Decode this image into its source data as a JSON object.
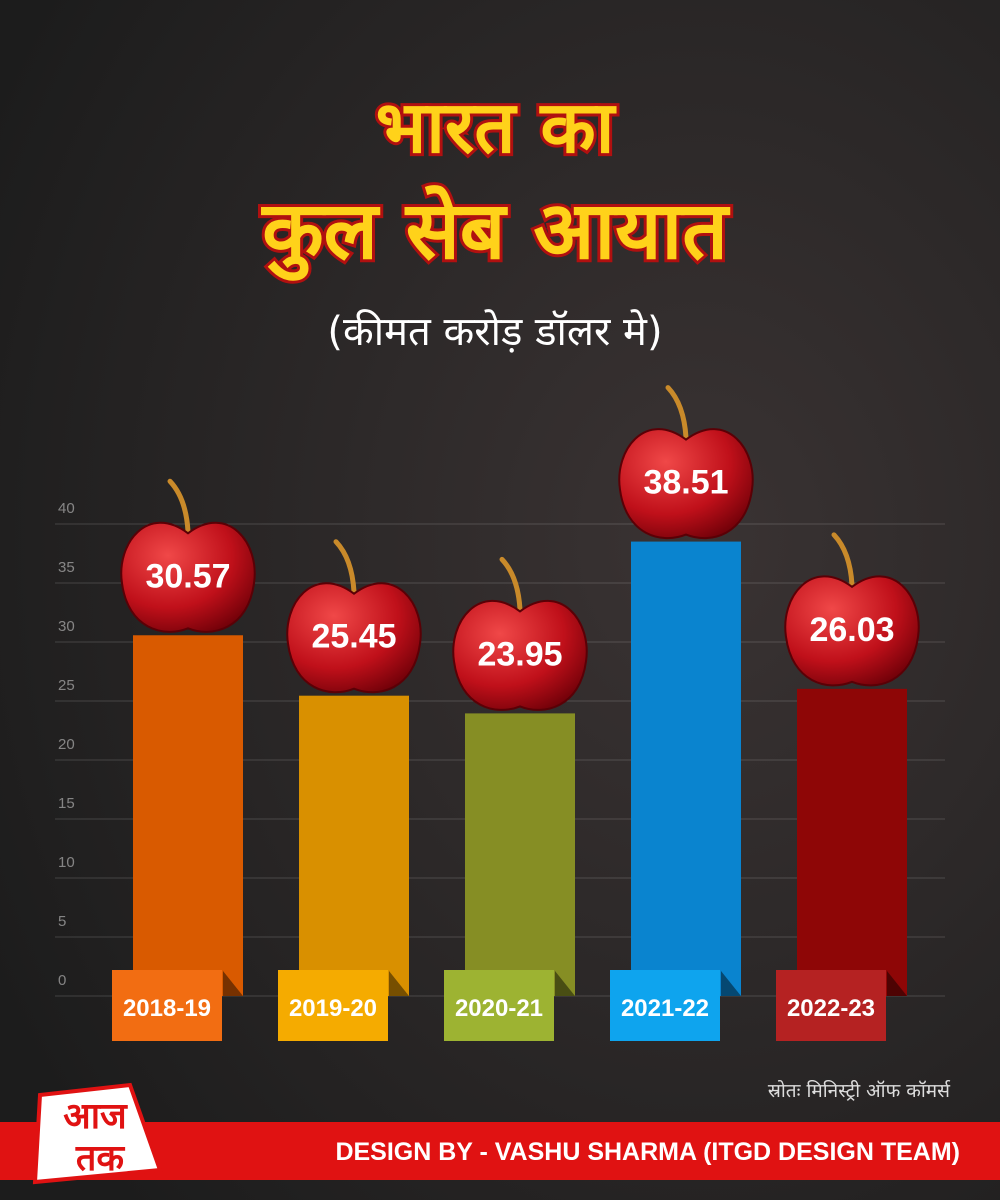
{
  "chart_data": {
    "type": "bar",
    "title": [
      "भारत का",
      "कुल सेब आयात"
    ],
    "subtitle": "(कीमत करोड़ डॉलर मे)",
    "categories": [
      "2018-19",
      "2019-20",
      "2020-21",
      "2021-22",
      "2022-23"
    ],
    "values": [
      30.57,
      25.45,
      23.95,
      38.51,
      26.03
    ],
    "colors": [
      "#d95a00",
      "#d99000",
      "#868e24",
      "#0a84cf",
      "#8e0606"
    ],
    "tab_colors": [
      "#f26d12",
      "#f5ab00",
      "#9db332",
      "#0ea4ee",
      "#b52222"
    ],
    "ylim": [
      0,
      40
    ],
    "yticks": [
      0,
      5,
      10,
      15,
      20,
      25,
      30,
      35,
      40
    ],
    "grid": true,
    "source": "स्रोतः मिनिस्ट्री ऑफ कॉमर्स"
  },
  "footer": {
    "credit": "DESIGN BY - VASHU SHARMA (ITGD DESIGN TEAM)",
    "logo": [
      "आज",
      "तक"
    ]
  }
}
